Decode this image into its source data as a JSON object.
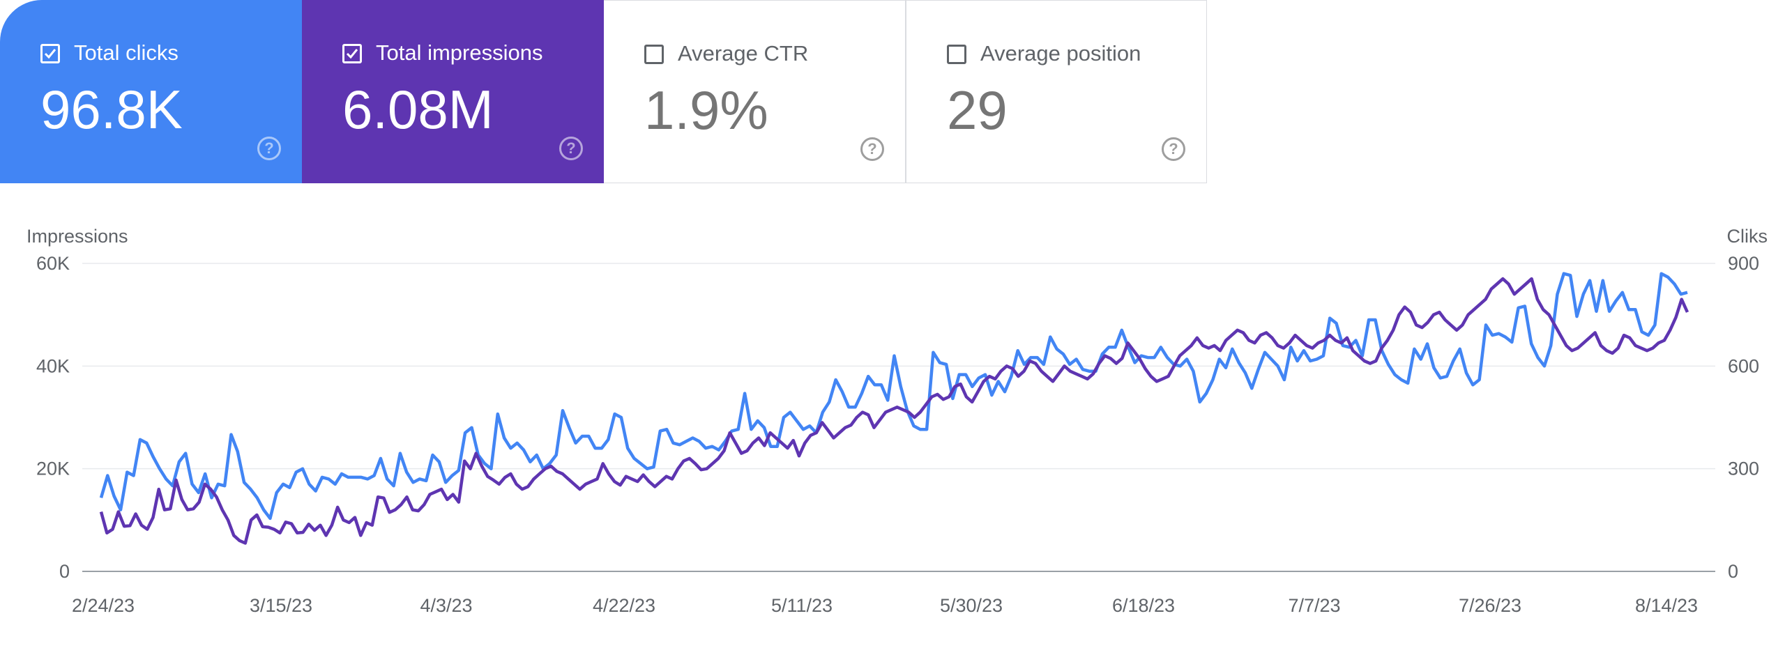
{
  "cards": [
    {
      "label": "Total clicks",
      "value": "96.8K",
      "checked": true,
      "color": "#4285f4"
    },
    {
      "label": "Total impressions",
      "value": "6.08M",
      "checked": true,
      "color": "#5e35b1"
    },
    {
      "label": "Average CTR",
      "value": "1.9%",
      "checked": false
    },
    {
      "label": "Average position",
      "value": "29",
      "checked": false
    }
  ],
  "help_icon": "?",
  "chart_data": {
    "type": "line",
    "y_left_title": "Impressions",
    "y_right_title": "Cliks",
    "y_left_ticks": [
      "0",
      "20K",
      "40K",
      "60K"
    ],
    "y_right_ticks": [
      "0",
      "300",
      "600",
      "900"
    ],
    "y_left_range": [
      0,
      60000
    ],
    "y_right_range": [
      0,
      900
    ],
    "x_tick_labels": [
      "2/24/23",
      "3/15/23",
      "4/3/23",
      "4/22/23",
      "5/11/23",
      "5/30/23",
      "6/18/23",
      "7/7/23",
      "7/26/23",
      "8/14/23"
    ],
    "x_start": "2/24/23",
    "x_end": "8/14/23",
    "grid": true,
    "series": [
      {
        "axis": "right",
        "color": "#4285f4",
        "values": [
          215,
          280,
          220,
          180,
          290,
          280,
          385,
          375,
          335,
          300,
          270,
          250,
          320,
          345,
          255,
          230,
          285,
          215,
          255,
          250,
          400,
          350,
          260,
          240,
          215,
          180,
          155,
          230,
          255,
          245,
          290,
          300,
          255,
          235,
          275,
          270,
          255,
          285,
          275,
          275,
          275,
          270,
          280,
          330,
          270,
          250,
          345,
          290,
          260,
          270,
          265,
          340,
          320,
          260,
          280,
          295,
          405,
          420,
          340,
          315,
          300,
          460,
          390,
          360,
          375,
          355,
          320,
          340,
          300,
          315,
          340,
          470,
          420,
          375,
          395,
          395,
          360,
          360,
          385,
          460,
          450,
          360,
          330,
          315,
          300,
          305,
          410,
          415,
          375,
          370,
          380,
          390,
          380,
          360,
          365,
          355,
          380,
          410,
          415,
          520,
          415,
          440,
          420,
          365,
          365,
          450,
          465,
          440,
          415,
          425,
          405,
          465,
          495,
          560,
          525,
          480,
          480,
          520,
          570,
          545,
          545,
          500,
          630,
          540,
          470,
          425,
          415,
          415,
          640,
          610,
          605,
          505,
          575,
          575,
          540,
          565,
          575,
          515,
          555,
          525,
          570,
          645,
          605,
          625,
          625,
          605,
          685,
          650,
          635,
          605,
          620,
          590,
          585,
          585,
          635,
          655,
          655,
          705,
          655,
          610,
          630,
          625,
          625,
          655,
          625,
          605,
          600,
          620,
          585,
          495,
          520,
          560,
          620,
          595,
          650,
          610,
          580,
          535,
          590,
          640,
          620,
          600,
          560,
          655,
          615,
          645,
          615,
          620,
          630,
          740,
          725,
          660,
          655,
          675,
          630,
          735,
          735,
          645,
          605,
          575,
          560,
          550,
          650,
          620,
          665,
          595,
          565,
          570,
          615,
          650,
          580,
          545,
          560,
          720,
          690,
          695,
          685,
          670,
          770,
          775,
          665,
          625,
          600,
          660,
          810,
          870,
          865,
          745,
          810,
          850,
          760,
          850,
          760,
          790,
          815,
          765,
          765,
          700,
          690,
          720,
          870,
          860,
          840,
          810,
          815
        ]
      },
      {
        "axis": "left",
        "color": "#5e35b1",
        "values": [
          11600,
          7500,
          8200,
          11600,
          8800,
          8900,
          11200,
          9000,
          8200,
          10500,
          16000,
          12000,
          12200,
          17800,
          14000,
          12000,
          12200,
          13500,
          17000,
          16000,
          14500,
          12000,
          10000,
          7000,
          6000,
          5500,
          10000,
          11000,
          8700,
          8600,
          8200,
          7500,
          9600,
          9300,
          7500,
          7600,
          9200,
          8000,
          9000,
          7000,
          9000,
          12500,
          10000,
          9500,
          10500,
          7000,
          9500,
          9000,
          14500,
          14300,
          11500,
          12000,
          13000,
          14500,
          12000,
          11800,
          13000,
          15000,
          15500,
          16000,
          14000,
          15000,
          13500,
          21500,
          20000,
          23000,
          20500,
          18500,
          17800,
          17000,
          18300,
          19000,
          17000,
          16000,
          16500,
          18000,
          19000,
          20000,
          20500,
          19500,
          19000,
          18000,
          17000,
          16000,
          17000,
          17500,
          18000,
          21000,
          19000,
          17500,
          16800,
          18500,
          18000,
          17500,
          18800,
          17500,
          16500,
          17500,
          18500,
          18000,
          20000,
          21500,
          22000,
          21000,
          19800,
          20000,
          21000,
          22000,
          23500,
          27000,
          25000,
          23000,
          23500,
          25000,
          26000,
          24500,
          27000,
          26000,
          25000,
          24000,
          25500,
          22500,
          25000,
          26500,
          27000,
          29000,
          27500,
          26000,
          27000,
          28000,
          28500,
          30000,
          31000,
          30500,
          28000,
          29500,
          31000,
          31500,
          32000,
          31500,
          31000,
          30000,
          31000,
          32500,
          34000,
          34500,
          33500,
          34000,
          36000,
          36500,
          34000,
          33000,
          35000,
          37000,
          38000,
          37500,
          39000,
          40000,
          39500,
          38000,
          39000,
          41000,
          40500,
          39000,
          38000,
          37000,
          38500,
          40000,
          39000,
          38500,
          38000,
          37500,
          38500,
          40500,
          42000,
          41500,
          40500,
          41500,
          44500,
          43000,
          41500,
          39500,
          38000,
          37000,
          37500,
          38000,
          40000,
          42000,
          43000,
          44000,
          45500,
          44000,
          43500,
          44000,
          43000,
          45000,
          46000,
          47000,
          46500,
          45000,
          44500,
          46000,
          46500,
          45500,
          44000,
          43500,
          44500,
          46000,
          45000,
          44000,
          43500,
          44500,
          45000,
          46000,
          45000,
          44500,
          45500,
          43000,
          42000,
          41000,
          40500,
          41000,
          43500,
          45000,
          47000,
          50000,
          51500,
          50500,
          48000,
          47500,
          48500,
          50000,
          50500,
          49000,
          48000,
          47000,
          48000,
          50000,
          51000,
          52000,
          53000,
          55000,
          56000,
          57000,
          56000,
          54000,
          55000,
          56000,
          57000,
          53000,
          51000,
          50000,
          48000,
          46000,
          44000,
          43000,
          43500,
          44500,
          45500,
          46500,
          44000,
          43000,
          42500,
          43500,
          46000,
          45500,
          44000,
          43500,
          43000,
          43500,
          44500,
          45000,
          47000,
          49500,
          53000,
          50500
        ]
      }
    ]
  }
}
